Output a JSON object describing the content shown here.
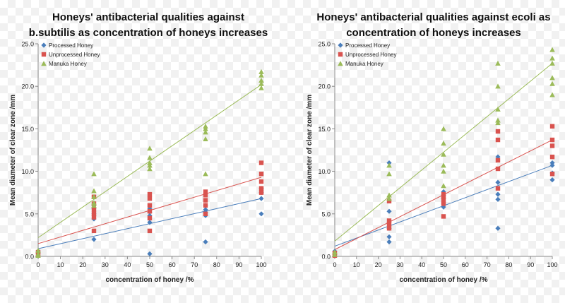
{
  "chart_data": [
    {
      "type": "scatter",
      "title": "Honeys' antibacterial qualities against\nb.subtilis as concentration of honeys increases",
      "xlabel": "concentration of honey /%",
      "ylabel": "Mean diameter of clear zone /mm",
      "xlim": [
        0,
        100
      ],
      "ylim": [
        0,
        25
      ],
      "xticks": [
        "0",
        "10",
        "20",
        "30",
        "40",
        "50",
        "60",
        "70",
        "80",
        "90",
        "100"
      ],
      "yticks": [
        "0.0",
        "5.0",
        "10.0",
        "15.0",
        "20.0",
        "25.0"
      ],
      "legend_position": "top-left",
      "series": [
        {
          "name": "Processed Honey",
          "color": "#4a7ebb",
          "marker": "diamond",
          "points": [
            [
              0,
              0.3
            ],
            [
              0,
              0.6
            ],
            [
              25,
              2.0
            ],
            [
              25,
              4.4
            ],
            [
              25,
              5.0
            ],
            [
              25,
              5.6
            ],
            [
              25,
              6.0
            ],
            [
              50,
              0.3
            ],
            [
              50,
              4.0
            ],
            [
              50,
              4.8
            ],
            [
              50,
              5.2
            ],
            [
              50,
              5.6
            ],
            [
              75,
              1.7
            ],
            [
              75,
              4.8
            ],
            [
              75,
              5.2
            ],
            [
              75,
              5.5
            ],
            [
              75,
              6.0
            ],
            [
              100,
              5.0
            ],
            [
              100,
              6.8
            ],
            [
              100,
              7.5
            ],
            [
              100,
              8.0
            ]
          ],
          "trendline": [
            [
              0,
              0.9
            ],
            [
              100,
              6.8
            ]
          ]
        },
        {
          "name": "Unprocessed Honey",
          "color": "#d9534f",
          "marker": "square",
          "points": [
            [
              0,
              0.2
            ],
            [
              0,
              0.5
            ],
            [
              25,
              3.0
            ],
            [
              25,
              4.6
            ],
            [
              25,
              5.0
            ],
            [
              25,
              5.5
            ],
            [
              25,
              6.2
            ],
            [
              25,
              7.0
            ],
            [
              50,
              3.0
            ],
            [
              50,
              4.5
            ],
            [
              50,
              5.3
            ],
            [
              50,
              6.0
            ],
            [
              50,
              6.8
            ],
            [
              50,
              7.3
            ],
            [
              75,
              5.0
            ],
            [
              75,
              6.0
            ],
            [
              75,
              6.6
            ],
            [
              75,
              7.2
            ],
            [
              75,
              7.6
            ],
            [
              100,
              7.5
            ],
            [
              100,
              8.0
            ],
            [
              100,
              8.8
            ],
            [
              100,
              9.7
            ],
            [
              100,
              11.0
            ]
          ],
          "trendline": [
            [
              0,
              1.5
            ],
            [
              100,
              9.3
            ]
          ]
        },
        {
          "name": "Manuka Honey",
          "color": "#9bbb59",
          "marker": "triangle",
          "points": [
            [
              0,
              0.1
            ],
            [
              0,
              0.3
            ],
            [
              0,
              0.7
            ],
            [
              25,
              6.0
            ],
            [
              25,
              6.3
            ],
            [
              25,
              7.0
            ],
            [
              25,
              7.7
            ],
            [
              25,
              9.7
            ],
            [
              50,
              10.3
            ],
            [
              50,
              10.7
            ],
            [
              50,
              11.0
            ],
            [
              50,
              11.6
            ],
            [
              50,
              12.7
            ],
            [
              75,
              9.7
            ],
            [
              75,
              13.8
            ],
            [
              75,
              14.6
            ],
            [
              75,
              15.0
            ],
            [
              75,
              15.3
            ],
            [
              100,
              19.8
            ],
            [
              100,
              20.3
            ],
            [
              100,
              20.7
            ],
            [
              100,
              21.3
            ],
            [
              100,
              21.7
            ]
          ],
          "trendline": [
            [
              0,
              2.2
            ],
            [
              100,
              20.2
            ]
          ]
        }
      ]
    },
    {
      "type": "scatter",
      "title": "Honeys' antibacterial qualities against ecoli as\nconcentration of honeys increases",
      "xlabel": "concentration of honey /%",
      "ylabel": "Mean diameter of clear zone /mm",
      "xlim": [
        0,
        100
      ],
      "ylim": [
        0,
        25
      ],
      "xticks": [
        "0",
        "10",
        "20",
        "30",
        "40",
        "50",
        "60",
        "70",
        "80",
        "90",
        "100"
      ],
      "yticks": [
        "0.0",
        "5.0",
        "10.0",
        "15.0",
        "20.0",
        "25.0"
      ],
      "legend_position": "top-left",
      "series": [
        {
          "name": "Processed Honey",
          "color": "#4a7ebb",
          "marker": "diamond",
          "points": [
            [
              0,
              0.3
            ],
            [
              0,
              0.6
            ],
            [
              25,
              1.7
            ],
            [
              25,
              2.3
            ],
            [
              25,
              3.3
            ],
            [
              25,
              5.3
            ],
            [
              25,
              11.0
            ],
            [
              50,
              5.8
            ],
            [
              50,
              6.3
            ],
            [
              50,
              6.8
            ],
            [
              50,
              7.2
            ],
            [
              50,
              7.6
            ],
            [
              75,
              3.3
            ],
            [
              75,
              6.7
            ],
            [
              75,
              7.3
            ],
            [
              75,
              8.7
            ],
            [
              75,
              11.7
            ],
            [
              100,
              9.0
            ],
            [
              100,
              9.8
            ],
            [
              100,
              10.7
            ],
            [
              100,
              11.0
            ]
          ],
          "trendline": [
            [
              0,
              1.2
            ],
            [
              100,
              10.7
            ]
          ]
        },
        {
          "name": "Unprocessed Honey",
          "color": "#d9534f",
          "marker": "square",
          "points": [
            [
              0,
              0.1
            ],
            [
              0,
              0.4
            ],
            [
              25,
              3.3
            ],
            [
              25,
              3.8
            ],
            [
              25,
              4.2
            ],
            [
              25,
              6.5
            ],
            [
              50,
              4.7
            ],
            [
              50,
              6.2
            ],
            [
              50,
              6.7
            ],
            [
              50,
              7.0
            ],
            [
              50,
              7.3
            ],
            [
              75,
              8.0
            ],
            [
              75,
              10.3
            ],
            [
              75,
              11.3
            ],
            [
              75,
              13.7
            ],
            [
              75,
              14.7
            ],
            [
              100,
              9.7
            ],
            [
              100,
              11.7
            ],
            [
              100,
              13.0
            ],
            [
              100,
              13.7
            ],
            [
              100,
              15.3
            ]
          ],
          "trendline": [
            [
              0,
              0.8
            ],
            [
              100,
              13.7
            ]
          ]
        },
        {
          "name": "Manuka Honey",
          "color": "#9bbb59",
          "marker": "triangle",
          "points": [
            [
              0,
              0.2
            ],
            [
              0,
              0.5
            ],
            [
              25,
              6.8
            ],
            [
              25,
              7.2
            ],
            [
              25,
              9.7
            ],
            [
              25,
              10.7
            ],
            [
              50,
              8.3
            ],
            [
              50,
              10.0
            ],
            [
              50,
              10.7
            ],
            [
              50,
              12.0
            ],
            [
              50,
              13.3
            ],
            [
              50,
              15.0
            ],
            [
              75,
              15.7
            ],
            [
              75,
              16.0
            ],
            [
              75,
              17.3
            ],
            [
              75,
              20.0
            ],
            [
              75,
              22.7
            ],
            [
              100,
              19.0
            ],
            [
              100,
              20.3
            ],
            [
              100,
              21.0
            ],
            [
              100,
              22.7
            ],
            [
              100,
              23.3
            ],
            [
              100,
              24.3
            ]
          ],
          "trendline": [
            [
              0,
              1.8
            ],
            [
              100,
              22.7
            ]
          ]
        }
      ]
    }
  ]
}
